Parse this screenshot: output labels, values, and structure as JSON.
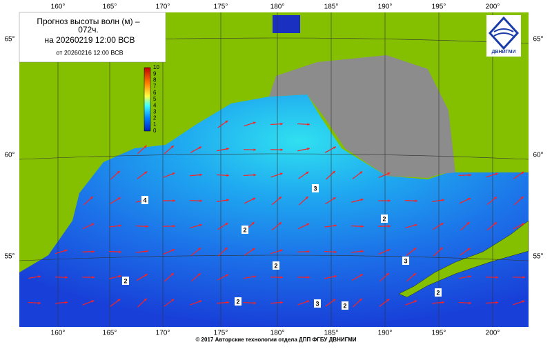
{
  "header": {
    "title_line1": "Прогноз высоты волн (м) –",
    "title_line2": "072ч.",
    "valid_time": "на 20260219 12:00 ВСВ",
    "issued": "от 20260216 12:00 ВСВ"
  },
  "logo": {
    "text": "ДВНИГМИ"
  },
  "longitudes": [
    "160°",
    "165°",
    "170°",
    "175°",
    "180°",
    "185°",
    "190°",
    "195°",
    "200°"
  ],
  "latitudes": [
    "65°",
    "60°",
    "55°"
  ],
  "scale": {
    "labels": [
      "0",
      "1",
      "2",
      "3",
      "4",
      "5",
      "6",
      "7",
      "8",
      "9",
      "10"
    ]
  },
  "contour_labels": [
    "4",
    "2",
    "3",
    "2",
    "2",
    "3",
    "2",
    "2",
    "3",
    "2",
    "2"
  ],
  "footer": "© 2017 Авторские технологии отдела ДПП ФГБУ ДВНИГМИ"
}
